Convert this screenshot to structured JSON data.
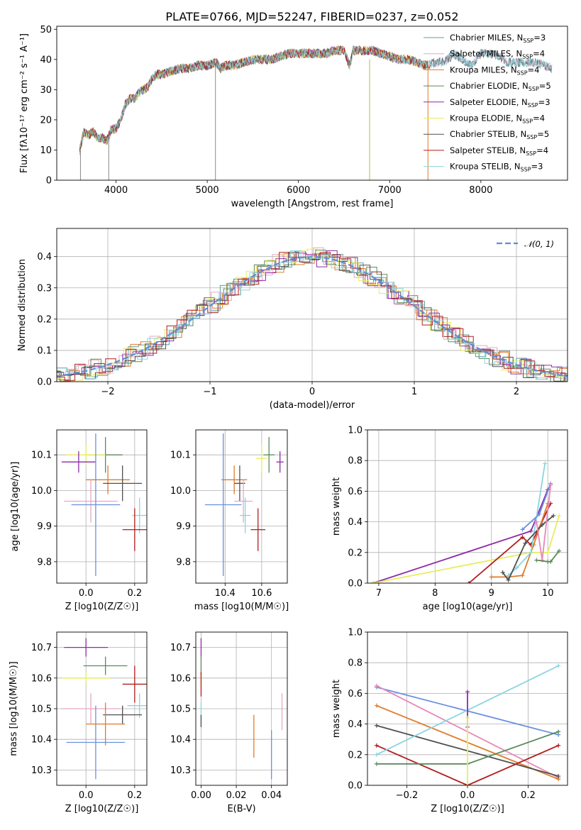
{
  "figure_title": "PLATE=0766, MJD=52247, FIBERID=0237, z=0.052",
  "colors": {
    "Chabrier MILES": "#5b9ea6",
    "Salpeter MILES": "#e7a7c3",
    "Kroupa MILES": "#e07b2a",
    "Chabrier ELODIE": "#5a8a5c",
    "Salpeter ELODIE": "#8e2aa8",
    "Kroupa ELODIE": "#e5ee5a",
    "Chabrier STELIB": "#505050",
    "Salpeter STELIB": "#b01e1e",
    "Kroupa STELIB": "#8ad5e0",
    "normal_curve": "#5b8fd6",
    "extra_blue": "#6b8fe0",
    "extra_pink": "#e887b8"
  },
  "chart_data": [
    {
      "id": "spectrum",
      "type": "line",
      "title": "PLATE=0766, MJD=52247, FIBERID=0237, z=0.052",
      "xlabel": "wavelength [Angstrom, rest frame]",
      "ylabel": "Flux [fλ10⁻¹⁷ erg cm⁻² s⁻¹ A⁻¹]",
      "xlim": [
        3350,
        8950
      ],
      "ylim": [
        0,
        51
      ],
      "xticks": [
        4000,
        5000,
        6000,
        7000,
        8000
      ],
      "yticks": [
        0,
        10,
        20,
        30,
        40,
        50
      ],
      "grid": false,
      "legend": "top-right",
      "spectrum_x": [
        3600,
        3650,
        3700,
        3750,
        3800,
        3850,
        3900,
        3950,
        4000,
        4050,
        4100,
        4150,
        4200,
        4250,
        4300,
        4350,
        4400,
        4450,
        4500,
        4600,
        4700,
        4800,
        4900,
        5000,
        5100,
        5150,
        5200,
        5300,
        5400,
        5500,
        5600,
        5700,
        5800,
        5900,
        6000,
        6100,
        6200,
        6300,
        6400,
        6500,
        6560,
        6600,
        6700,
        6800,
        6900,
        7000,
        7100,
        7200,
        7300,
        7400,
        7500,
        7600,
        7700,
        7800,
        7900,
        8000,
        8100,
        8200,
        8300,
        8400,
        8500,
        8600,
        8700,
        8780
      ],
      "spectrum_y": [
        10,
        16,
        15,
        16,
        14,
        14,
        13,
        17,
        17,
        20,
        25,
        27,
        27,
        29,
        30,
        31,
        34,
        35,
        35,
        36,
        37,
        37,
        38,
        38,
        39,
        37,
        38,
        38,
        39,
        40,
        40,
        40,
        41,
        42,
        42,
        42,
        42,
        42,
        43,
        43,
        38,
        43,
        43,
        43,
        42,
        41,
        40,
        40,
        39,
        38,
        39,
        39,
        42,
        40,
        38,
        42,
        42,
        41,
        39,
        39,
        39,
        39,
        38,
        37
      ],
      "series": [
        {
          "name": "Chabrier MILES",
          "nssp": "3"
        },
        {
          "name": "Salpeter MILES",
          "nssp": "4"
        },
        {
          "name": "Kroupa MILES",
          "nssp": "4"
        },
        {
          "name": "Chabrier ELODIE",
          "nssp": "5"
        },
        {
          "name": "Salpeter ELODIE",
          "nssp": "3"
        },
        {
          "name": "Kroupa ELODIE",
          "nssp": "4"
        },
        {
          "name": "Chabrier STELIB",
          "nssp": "5"
        },
        {
          "name": "Salpeter STELIB",
          "nssp": "4"
        },
        {
          "name": "Kroupa STELIB",
          "nssp": "3"
        }
      ],
      "drop_lines": [
        {
          "x": 3610,
          "from": 10,
          "to": 0
        },
        {
          "x": 3920,
          "from": 14,
          "to": 0
        },
        {
          "x": 5090,
          "from": 38,
          "to": 0
        },
        {
          "x": 6780,
          "from": 40,
          "to": 0
        },
        {
          "x": 7420,
          "from": 39,
          "to": 0
        }
      ]
    },
    {
      "id": "residual_histogram",
      "type": "histogram",
      "xlabel": "(data-model)/error",
      "ylabel": "Normed distribution",
      "xlim": [
        -2.5,
        2.5
      ],
      "ylim": [
        0,
        0.49
      ],
      "xticks": [
        -2,
        -1,
        0,
        1,
        2
      ],
      "yticks": [
        0.0,
        0.1,
        0.2,
        0.3,
        0.4
      ],
      "grid": true,
      "legend": "top-right",
      "normal_label": "𝒩(0, 1)",
      "bin_width": 0.1
    },
    {
      "id": "age_vs_Z",
      "type": "scatter",
      "xlabel": "Z [log10(Z/Z☉)]",
      "ylabel": "age  [log10(age/yr)]",
      "xlim": [
        -0.12,
        0.25
      ],
      "ylim": [
        9.74,
        10.17
      ],
      "xticks": [
        0.0,
        0.2
      ],
      "yticks": [
        9.8,
        9.9,
        10.0,
        10.1
      ],
      "grid": true,
      "points": [
        {
          "x": 0.08,
          "y": 10.1,
          "xerr": 0.07,
          "yerr": 0.05,
          "series": "Chabrier ELODIE"
        },
        {
          "x": 0.0,
          "y": 10.1,
          "xerr": 0.08,
          "yerr": 0.03,
          "series": "Kroupa ELODIE"
        },
        {
          "x": -0.03,
          "y": 10.08,
          "xerr": 0.07,
          "yerr": 0.03,
          "series": "Salpeter ELODIE"
        },
        {
          "x": 0.09,
          "y": 10.03,
          "xerr": 0.09,
          "yerr": 0.04,
          "series": "Kroupa MILES"
        },
        {
          "x": 0.15,
          "y": 10.02,
          "xerr": 0.08,
          "yerr": 0.05,
          "series": "Chabrier STELIB"
        },
        {
          "x": 0.02,
          "y": 9.97,
          "xerr": 0.11,
          "yerr": 0.06,
          "series": "Salpeter MILES"
        },
        {
          "x": 0.04,
          "y": 9.96,
          "xerr": 0.1,
          "yerr": 0.2,
          "series": "Kroupa"
        },
        {
          "x": 0.22,
          "y": 9.93,
          "xerr": 0.03,
          "yerr": 0.05,
          "series": "Kroupa STELIB"
        },
        {
          "x": 0.2,
          "y": 9.89,
          "xerr": 0.05,
          "yerr": 0.06,
          "series": "Salpeter STELIB"
        }
      ]
    },
    {
      "id": "age_vs_mass",
      "type": "scatter",
      "xlabel": "mass [log10(M/M☉)]",
      "ylabel": "",
      "xlim": [
        10.24,
        10.74
      ],
      "ylim": [
        9.74,
        10.17
      ],
      "xticks": [
        10.4,
        10.6
      ],
      "yticks": [
        9.8,
        9.9,
        10.0,
        10.1
      ],
      "grid": true,
      "points": [
        {
          "x": 10.64,
          "y": 10.1,
          "xerr": 0.03,
          "yerr": 0.05,
          "series": "Chabrier ELODIE"
        },
        {
          "x": 10.6,
          "y": 10.09,
          "xerr": 0.03,
          "yerr": 0.04,
          "series": "Kroupa ELODIE"
        },
        {
          "x": 10.7,
          "y": 10.08,
          "xerr": 0.02,
          "yerr": 0.03,
          "series": "Salpeter ELODIE"
        },
        {
          "x": 10.45,
          "y": 10.03,
          "xerr": 0.07,
          "yerr": 0.04,
          "series": "Kroupa MILES"
        },
        {
          "x": 10.48,
          "y": 10.02,
          "xerr": 0.03,
          "yerr": 0.05,
          "series": "Chabrier STELIB"
        },
        {
          "x": 10.5,
          "y": 9.97,
          "xerr": 0.05,
          "yerr": 0.06,
          "series": "Salpeter MILES"
        },
        {
          "x": 10.39,
          "y": 9.96,
          "xerr": 0.1,
          "yerr": 0.2,
          "series": "Kroupa"
        },
        {
          "x": 10.51,
          "y": 9.93,
          "xerr": 0.03,
          "yerr": 0.05,
          "series": "Kroupa STELIB"
        },
        {
          "x": 10.58,
          "y": 9.89,
          "xerr": 0.04,
          "yerr": 0.06,
          "series": "Salpeter STELIB"
        }
      ]
    },
    {
      "id": "weight_vs_age",
      "type": "line",
      "xlabel": "age  [log10(age/yr)]",
      "ylabel": "mass weight",
      "xlim": [
        6.8,
        10.35
      ],
      "ylim": [
        0,
        1
      ],
      "xticks": [
        7,
        8,
        9,
        10
      ],
      "yticks": [
        0.0,
        0.2,
        0.4,
        0.6,
        0.8,
        1.0
      ],
      "grid": true,
      "series": [
        {
          "name": "Salpeter ELODIE",
          "x": [
            6.9,
            9.7,
            10.0
          ],
          "y": [
            0.0,
            0.34,
            0.61
          ]
        },
        {
          "name": "Kroupa ELODIE",
          "x": [
            6.9,
            9.7,
            10.0,
            10.2
          ],
          "y": [
            0.0,
            0.2,
            0.2,
            0.44
          ]
        },
        {
          "name": "Salpeter STELIB",
          "x": [
            8.6,
            9.55,
            9.7,
            10.05
          ],
          "y": [
            0.0,
            0.3,
            0.25,
            0.52
          ]
        },
        {
          "name": "Kroupa MILES",
          "x": [
            9.0,
            9.3,
            9.55,
            9.75,
            10.0
          ],
          "y": [
            0.04,
            0.04,
            0.05,
            0.25,
            0.52
          ]
        },
        {
          "name": "Kroupa STELIB",
          "x": [
            9.3,
            9.45,
            9.7,
            9.95
          ],
          "y": [
            0.05,
            0.1,
            0.2,
            0.78
          ]
        },
        {
          "name": "Chabrier STELIB",
          "x": [
            9.2,
            9.3,
            9.6,
            9.9,
            10.1
          ],
          "y": [
            0.07,
            0.02,
            0.26,
            0.38,
            0.44
          ]
        },
        {
          "name": "Blue",
          "x": [
            9.55,
            9.85,
            10.05
          ],
          "y": [
            0.35,
            0.45,
            0.65
          ]
        },
        {
          "name": "Pink",
          "x": [
            9.8,
            9.9,
            10.05
          ],
          "y": [
            0.4,
            0.15,
            0.64
          ]
        },
        {
          "name": "Chabrier ELODIE",
          "x": [
            9.8,
            10.0,
            10.05,
            10.2
          ],
          "y": [
            0.15,
            0.14,
            0.14,
            0.21
          ]
        }
      ]
    },
    {
      "id": "mass_vs_Z",
      "type": "scatter",
      "xlabel": "Z [log10(Z/Z☉)]",
      "ylabel": "mass [log10(M/M☉)]",
      "xlim": [
        -0.12,
        0.25
      ],
      "ylim": [
        10.25,
        10.75
      ],
      "xticks": [
        0.0,
        0.2
      ],
      "yticks": [
        10.3,
        10.4,
        10.5,
        10.6,
        10.7
      ],
      "grid": true,
      "points": [
        {
          "x": 0.0,
          "y": 10.7,
          "xerr": 0.09,
          "yerr": 0.03,
          "series": "Salpeter ELODIE"
        },
        {
          "x": 0.08,
          "y": 10.64,
          "xerr": 0.09,
          "yerr": 0.03,
          "series": "Chabrier ELODIE"
        },
        {
          "x": 0.0,
          "y": 10.6,
          "xerr": 0.1,
          "yerr": 0.02,
          "series": "Kroupa ELODIE"
        },
        {
          "x": 0.2,
          "y": 10.58,
          "xerr": 0.05,
          "yerr": 0.06,
          "series": "Salpeter STELIB"
        },
        {
          "x": 0.22,
          "y": 10.51,
          "xerr": 0.05,
          "yerr": 0.04,
          "series": "Kroupa STELIB"
        },
        {
          "x": 0.02,
          "y": 10.5,
          "xerr": 0.12,
          "yerr": 0.05,
          "series": "Salpeter MILES"
        },
        {
          "x": 0.15,
          "y": 10.48,
          "xerr": 0.08,
          "yerr": 0.03,
          "series": "Chabrier STELIB"
        },
        {
          "x": 0.08,
          "y": 10.45,
          "xerr": 0.08,
          "yerr": 0.07,
          "series": "Kroupa MILES"
        },
        {
          "x": 0.04,
          "y": 10.39,
          "xerr": 0.12,
          "yerr": 0.12,
          "series": "Kroupa"
        }
      ]
    },
    {
      "id": "mass_vs_ebv",
      "type": "scatter",
      "xlabel": "E(B-V)",
      "ylabel": "",
      "xlim": [
        -0.003,
        0.049
      ],
      "ylim": [
        10.25,
        10.75
      ],
      "xticks": [
        0.0,
        0.02,
        0.04
      ],
      "yticks": [
        10.3,
        10.4,
        10.5,
        10.6,
        10.7
      ],
      "grid": true,
      "points": [
        {
          "x": 0.0,
          "y": 10.7,
          "yerr": 0.03,
          "series": "Salpeter ELODIE"
        },
        {
          "x": 0.0,
          "y": 10.64,
          "yerr": 0.03,
          "series": "Chabrier ELODIE"
        },
        {
          "x": 0.0,
          "y": 10.6,
          "yerr": 0.02,
          "series": "Kroupa ELODIE"
        },
        {
          "x": 0.0,
          "y": 10.58,
          "yerr": 0.04,
          "series": "Salpeter STELIB"
        },
        {
          "x": 0.0,
          "y": 10.48,
          "yerr": 0.04,
          "series": "Kroupa STELIB"
        },
        {
          "x": 0.046,
          "y": 10.49,
          "yerr": 0.06,
          "series": "Salpeter MILES"
        },
        {
          "x": 0.0,
          "y": 10.46,
          "yerr": 0.02,
          "series": "Chabrier STELIB"
        },
        {
          "x": 0.03,
          "y": 10.41,
          "yerr": 0.07,
          "series": "Kroupa MILES"
        },
        {
          "x": 0.04,
          "y": 10.35,
          "yerr": 0.08,
          "series": "Kroupa"
        }
      ]
    },
    {
      "id": "weight_vs_Z",
      "type": "line",
      "xlabel": "Z [log10(Z/Z☉)]",
      "ylabel": "mass weight",
      "xlim": [
        -0.33,
        0.33
      ],
      "ylim": [
        0,
        1
      ],
      "xticks": [
        -0.2,
        0.0,
        0.2
      ],
      "yticks": [
        0.0,
        0.2,
        0.4,
        0.6,
        0.8,
        1.0
      ],
      "grid": true,
      "series": [
        {
          "name": "Blue",
          "x": [
            -0.3,
            0.3
          ],
          "y": [
            0.64,
            0.33
          ]
        },
        {
          "name": "Pink",
          "x": [
            -0.3,
            0.3
          ],
          "y": [
            0.65,
            0.05
          ]
        },
        {
          "name": "Kroupa MILES",
          "x": [
            -0.3,
            0.3
          ],
          "y": [
            0.52,
            0.04
          ]
        },
        {
          "name": "Chabrier STELIB",
          "x": [
            -0.3,
            0.3
          ],
          "y": [
            0.39,
            0.06
          ]
        },
        {
          "name": "Salpeter STELIB",
          "x": [
            -0.3,
            0.0,
            0.3
          ],
          "y": [
            0.26,
            0.0,
            0.26
          ]
        },
        {
          "name": "Chabrier ELODIE",
          "x": [
            -0.3,
            0.0,
            0.3
          ],
          "y": [
            0.14,
            0.14,
            0.35
          ]
        },
        {
          "name": "Kroupa STELIB",
          "x": [
            -0.3,
            0.3
          ],
          "y": [
            0.2,
            0.78
          ]
        },
        {
          "name": "Salpeter ELODIE",
          "x": [
            0.0,
            0.0
          ],
          "y": [
            0.38,
            0.61
          ]
        },
        {
          "name": "Kroupa ELODIE",
          "x": [
            0.0,
            0.0
          ],
          "y": [
            0.0,
            0.44
          ]
        }
      ]
    }
  ]
}
